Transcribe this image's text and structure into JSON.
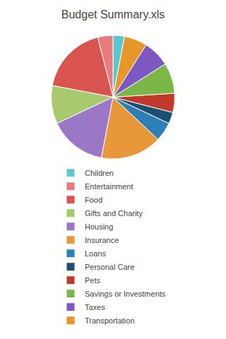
{
  "chart_data": {
    "type": "pie",
    "title": "Budget Summary.xls",
    "categories": [
      "Children",
      "Entertainment",
      "Food",
      "Gifts and Charity",
      "Housing",
      "Insurance",
      "Loans",
      "Personal Care",
      "Pets",
      "Savings or Investments",
      "Taxes",
      "Transportation"
    ],
    "values": [
      3,
      4,
      18,
      10,
      15,
      16,
      5,
      3,
      5,
      8,
      7,
      6
    ],
    "colors": [
      "#5bc8d0",
      "#e87c7c",
      "#d9534f",
      "#a8c96e",
      "#9b77c7",
      "#e8973a",
      "#2e7fb5",
      "#1a4f6e",
      "#c0392b",
      "#7ab648",
      "#7e57c2",
      "#e5972a"
    ],
    "legend": "bottom"
  }
}
